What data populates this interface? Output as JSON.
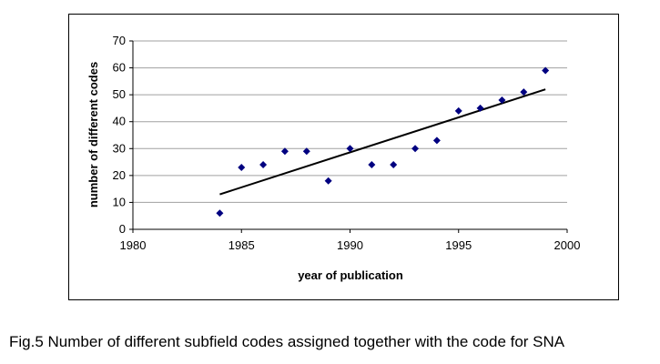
{
  "caption": "Fig.5 Number of different subfield codes assigned together with the code for SNA",
  "chart_data": {
    "type": "scatter",
    "title": "",
    "xlabel": "year of publication",
    "ylabel": "number of different codes",
    "xlim": [
      1980,
      2000
    ],
    "ylim": [
      0,
      70
    ],
    "xticks": [
      1980,
      1985,
      1990,
      1995,
      2000
    ],
    "yticks": [
      0,
      10,
      20,
      30,
      40,
      50,
      60,
      70
    ],
    "grid": "horizontal",
    "legend": "none",
    "marker_color": "#000080",
    "marker_shape": "diamond",
    "points": [
      {
        "x": 1984,
        "y": 6
      },
      {
        "x": 1985,
        "y": 23
      },
      {
        "x": 1986,
        "y": 24
      },
      {
        "x": 1987,
        "y": 29
      },
      {
        "x": 1988,
        "y": 29
      },
      {
        "x": 1989,
        "y": 18
      },
      {
        "x": 1990,
        "y": 30
      },
      {
        "x": 1991,
        "y": 24
      },
      {
        "x": 1992,
        "y": 24
      },
      {
        "x": 1993,
        "y": 30
      },
      {
        "x": 1994,
        "y": 33
      },
      {
        "x": 1995,
        "y": 44
      },
      {
        "x": 1996,
        "y": 45
      },
      {
        "x": 1997,
        "y": 48
      },
      {
        "x": 1998,
        "y": 51
      },
      {
        "x": 1999,
        "y": 59
      }
    ],
    "trendline": {
      "type": "linear",
      "color": "#000000",
      "points": [
        {
          "x": 1984,
          "y": 13
        },
        {
          "x": 1999,
          "y": 52
        }
      ]
    }
  }
}
